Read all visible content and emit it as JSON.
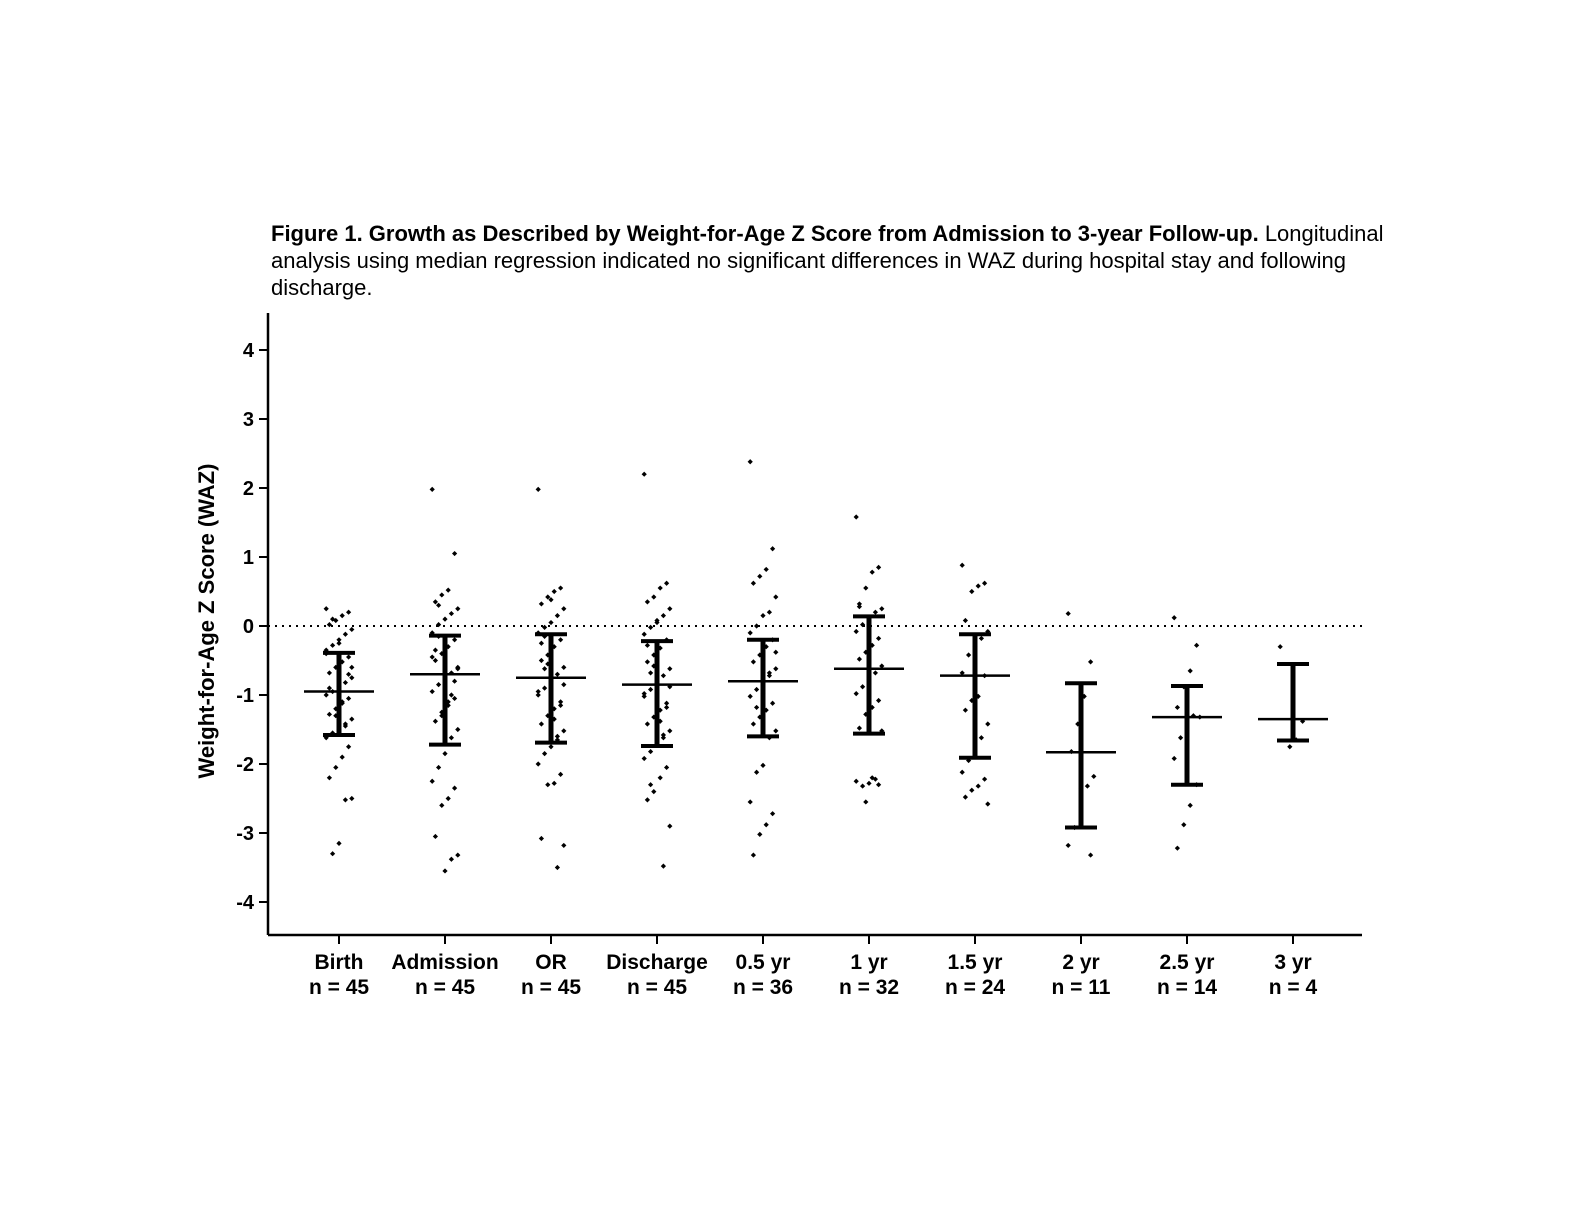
{
  "caption": {
    "title": "Figure 1. Growth as Described by Weight-for-Age Z Score from Admission to 3-year Follow-up.",
    "subtitle": "Longitudinal analysis using median regression indicated no significant differences in WAZ during hospital stay and following discharge."
  },
  "chart_data": {
    "type": "scatter",
    "title": "Figure 1. Growth as Described by Weight-for-Age Z Score from Admission to 3-year Follow-up.",
    "subtitle": "Longitudinal analysis using median regression indicated no significant differences in WAZ during hospital stay and following discharge.",
    "ylabel": "Weight-for-Age Z Score (WAZ)",
    "xlabel": "",
    "ylim": [
      -4.5,
      4.5
    ],
    "yticks": [
      -4,
      -3,
      -2,
      -1,
      0,
      1,
      2,
      3,
      4
    ],
    "reference_line": {
      "y": 0,
      "style": "dotted"
    },
    "grid": false,
    "groups": [
      {
        "name": "Birth",
        "n_label": "n = 45",
        "median": -0.95,
        "q1": -1.58,
        "q3": -0.39,
        "points": [
          0.25,
          0.2,
          0.15,
          0.08,
          0.02,
          -0.05,
          -0.12,
          -0.2,
          -0.28,
          -0.35,
          -0.45,
          -0.52,
          -0.6,
          -0.68,
          -0.75,
          -0.82,
          -0.88,
          -0.95,
          -1.0,
          -1.05,
          -1.12,
          -1.2,
          -1.28,
          -1.35,
          -1.42,
          -1.5,
          -1.55,
          -1.62,
          -1.75,
          -1.9,
          -2.05,
          -2.2,
          -2.5,
          -2.52,
          -3.15,
          -3.3,
          -0.4,
          -0.7,
          -1.1,
          -1.3,
          -0.9,
          -0.6,
          -1.45,
          -0.25,
          0.1
        ]
      },
      {
        "name": "Admission",
        "n_label": "n = 45",
        "median": -0.7,
        "q1": -1.72,
        "q3": -0.14,
        "points": [
          1.98,
          1.05,
          0.52,
          0.45,
          0.35,
          0.25,
          0.18,
          0.1,
          0.02,
          -0.1,
          -0.2,
          -0.3,
          -0.4,
          -0.5,
          -0.6,
          -0.68,
          -0.75,
          -0.85,
          -0.95,
          -1.05,
          -1.15,
          -1.25,
          -1.38,
          -1.5,
          -1.62,
          -1.85,
          -2.05,
          -2.25,
          -2.35,
          -2.5,
          -2.6,
          -3.05,
          -3.32,
          -3.38,
          -3.55,
          -0.15,
          -0.45,
          -0.8,
          -1.1,
          -1.3,
          -0.35,
          -0.62,
          -1.0,
          -1.4,
          0.3
        ]
      },
      {
        "name": "OR",
        "n_label": "n = 45",
        "median": -0.75,
        "q1": -1.69,
        "q3": -0.12,
        "points": [
          1.98,
          0.55,
          0.5,
          0.42,
          0.32,
          0.25,
          0.15,
          0.05,
          -0.02,
          -0.1,
          -0.2,
          -0.3,
          -0.42,
          -0.5,
          -0.6,
          -0.7,
          -0.8,
          -0.9,
          -1.0,
          -1.1,
          -1.2,
          -1.3,
          -1.42,
          -1.52,
          -1.65,
          -1.75,
          -1.85,
          -2.0,
          -2.15,
          -2.28,
          -2.3,
          -3.08,
          -3.18,
          -3.5,
          -0.38,
          -0.62,
          -0.95,
          -1.15,
          -1.35,
          -0.55,
          -0.25,
          -0.85,
          -1.6,
          0.38,
          -0.15
        ]
      },
      {
        "name": "Discharge",
        "n_label": "n = 45",
        "median": -0.85,
        "q1": -1.74,
        "q3": -0.22,
        "points": [
          2.2,
          0.62,
          0.55,
          0.42,
          0.35,
          0.25,
          0.15,
          0.08,
          -0.02,
          -0.12,
          -0.2,
          -0.32,
          -0.42,
          -0.52,
          -0.62,
          -0.72,
          -0.82,
          -0.92,
          -1.02,
          -1.12,
          -1.22,
          -1.32,
          -1.42,
          -1.52,
          -1.62,
          -1.72,
          -1.82,
          -1.92,
          -2.05,
          -2.2,
          -2.4,
          -2.52,
          -2.9,
          -3.48,
          -0.38,
          -0.68,
          -0.98,
          -1.18,
          -1.38,
          -0.58,
          -0.28,
          -0.88,
          -1.58,
          0.05,
          -2.3
        ]
      },
      {
        "name": "0.5 yr",
        "n_label": "n = 36",
        "median": -0.8,
        "q1": -1.6,
        "q3": -0.2,
        "points": [
          2.38,
          1.12,
          0.82,
          0.72,
          0.62,
          0.42,
          0.2,
          0.15,
          0.0,
          -0.1,
          -0.2,
          -0.3,
          -0.42,
          -0.52,
          -0.62,
          -0.72,
          -0.82,
          -0.92,
          -1.02,
          -1.12,
          -1.22,
          -1.32,
          -1.42,
          -1.52,
          -1.62,
          -2.02,
          -2.12,
          -2.55,
          -2.72,
          -2.88,
          -3.02,
          -3.32,
          -0.38,
          -0.68,
          -0.98,
          -1.18
        ]
      },
      {
        "name": "1 yr",
        "n_label": "n = 32",
        "median": -0.62,
        "q1": -1.56,
        "q3": 0.14,
        "points": [
          1.58,
          0.85,
          0.78,
          0.55,
          0.32,
          0.25,
          0.2,
          0.12,
          0.02,
          -0.08,
          -0.18,
          -0.28,
          -0.38,
          -0.48,
          -0.58,
          -0.68,
          -0.78,
          -0.88,
          -0.98,
          -1.08,
          -1.18,
          -1.28,
          -1.48,
          -1.52,
          -2.22,
          -2.28,
          -2.32,
          -2.25,
          -2.3,
          -2.2,
          -2.55,
          0.28
        ]
      },
      {
        "name": "1.5 yr",
        "n_label": "n = 24",
        "median": -0.72,
        "q1": -1.91,
        "q3": -0.12,
        "points": [
          0.88,
          0.62,
          0.58,
          0.5,
          0.08,
          -0.08,
          -0.18,
          -0.3,
          -0.42,
          -0.68,
          -0.72,
          -1.02,
          -1.08,
          -1.22,
          -1.42,
          -1.62,
          -1.88,
          -1.95,
          -2.12,
          -2.22,
          -2.32,
          -2.38,
          -2.48,
          -2.58
        ]
      },
      {
        "name": "2 yr",
        "n_label": "n = 11",
        "median": -1.83,
        "q1": -2.92,
        "q3": -0.83,
        "points": [
          0.18,
          -0.52,
          -1.02,
          -1.42,
          -1.82,
          -2.18,
          -2.32,
          -2.35,
          -2.92,
          -3.18,
          -3.32
        ]
      },
      {
        "name": "2.5 yr",
        "n_label": "n = 14",
        "median": -1.32,
        "q1": -2.3,
        "q3": -0.87,
        "points": [
          0.12,
          -0.28,
          -0.65,
          -0.88,
          -1.18,
          -1.32,
          -1.3,
          -1.35,
          -1.62,
          -1.92,
          -2.3,
          -2.6,
          -2.88,
          -3.22
        ]
      },
      {
        "name": "3 yr",
        "n_label": "n = 4",
        "median": -1.35,
        "q1": -1.66,
        "q3": -0.55,
        "points": [
          -0.3,
          -1.38,
          -1.65,
          -1.75
        ]
      }
    ]
  }
}
